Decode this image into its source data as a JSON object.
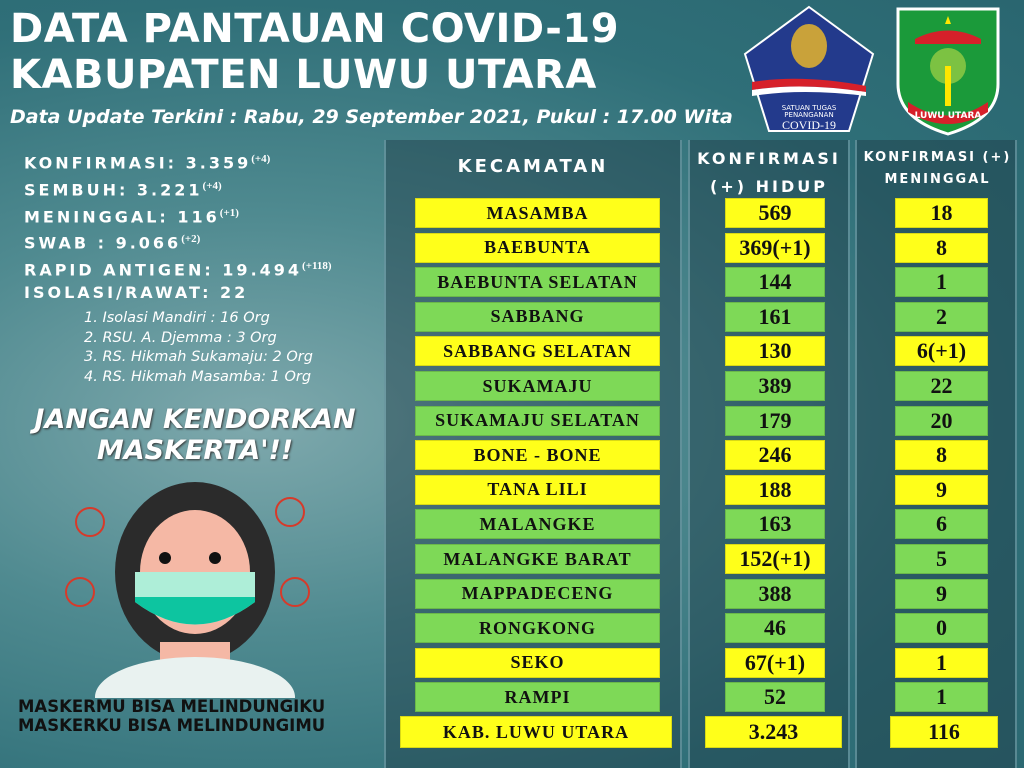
{
  "header": {
    "title1": "DATA PANTAUAN COVID-19",
    "title2": "KABUPATEN LUWU UTARA",
    "update": "Data Update Terkini : Rabu, 29 September 2021, Pukul : 17.00 Wita"
  },
  "logos": {
    "satgas": "SATUAN TUGAS PENANGANAN COVID-19",
    "luwu": "LUWU UTARA"
  },
  "stats": [
    {
      "label": "KONFIRMASI: 3.359",
      "delta": "(+4)"
    },
    {
      "label": "SEMBUH: 3.221",
      "delta": "(+4)"
    },
    {
      "label": "MENINGGAL: 116",
      "delta": "(+1)"
    },
    {
      "label": "SWAB : 9.066",
      "delta": "(+2)"
    },
    {
      "label": "RAPID ANTIGEN: 19.494",
      "delta": "(+118)"
    },
    {
      "label": "ISOLASI/RAWAT: 22",
      "delta": ""
    }
  ],
  "isolation": [
    "1. Isolasi Mandiri : 16 Org",
    "2. RSU. A. Djemma : 3 Org",
    "3. RS. Hikmah Sukamaju: 2 Org",
    "4. RS. Hikmah Masamba: 1 Org"
  ],
  "slogan": {
    "line1": "JANGAN KENDORKAN",
    "line2": "MASKERTA'!!"
  },
  "motto": {
    "line1": "MASKERMU BISA MELINDUNGIKU",
    "line2": "MASKERKU BISA MELINDUNGIMU"
  },
  "colors": {
    "yellow": "#ffff1a",
    "green": "#7ed957"
  },
  "table": {
    "headers": {
      "kecamatan": "KECAMATAN",
      "hidup1": "KONFIRMASI",
      "hidup2": "(+) HIDUP",
      "mati1": "KONFIRMASI (+)",
      "mati2": "MENINGGAL"
    },
    "rows": [
      {
        "name": "MASAMBA",
        "hidup": "569",
        "mati": "18",
        "c": [
          "yellow",
          "yellow",
          "yellow"
        ]
      },
      {
        "name": "BAEBUNTA",
        "hidup": "369(+1)",
        "mati": "8",
        "c": [
          "yellow",
          "yellow",
          "yellow"
        ]
      },
      {
        "name": "BAEBUNTA SELATAN",
        "hidup": "144",
        "mati": "1",
        "c": [
          "green",
          "green",
          "green"
        ]
      },
      {
        "name": "SABBANG",
        "hidup": "161",
        "mati": "2",
        "c": [
          "green",
          "green",
          "green"
        ]
      },
      {
        "name": "SABBANG SELATAN",
        "hidup": "130",
        "mati": "6(+1)",
        "c": [
          "yellow",
          "yellow",
          "yellow"
        ]
      },
      {
        "name": "SUKAMAJU",
        "hidup": "389",
        "mati": "22",
        "c": [
          "green",
          "green",
          "green"
        ]
      },
      {
        "name": "SUKAMAJU SELATAN",
        "hidup": "179",
        "mati": "20",
        "c": [
          "green",
          "green",
          "green"
        ]
      },
      {
        "name": "BONE - BONE",
        "hidup": "246",
        "mati": "8",
        "c": [
          "yellow",
          "yellow",
          "yellow"
        ]
      },
      {
        "name": "TANA LILI",
        "hidup": "188",
        "mati": "9",
        "c": [
          "yellow",
          "yellow",
          "yellow"
        ]
      },
      {
        "name": "MALANGKE",
        "hidup": "163",
        "mati": "6",
        "c": [
          "green",
          "green",
          "green"
        ]
      },
      {
        "name": "MALANGKE BARAT",
        "hidup": "152(+1)",
        "mati": "5",
        "c": [
          "green",
          "yellow",
          "green"
        ]
      },
      {
        "name": "MAPPADECENG",
        "hidup": "388",
        "mati": "9",
        "c": [
          "green",
          "green",
          "green"
        ]
      },
      {
        "name": "RONGKONG",
        "hidup": "46",
        "mati": "0",
        "c": [
          "green",
          "green",
          "green"
        ]
      },
      {
        "name": "SEKO",
        "hidup": "67(+1)",
        "mati": "1",
        "c": [
          "yellow",
          "yellow",
          "yellow"
        ]
      },
      {
        "name": "RAMPI",
        "hidup": "52",
        "mati": "1",
        "c": [
          "green",
          "green",
          "green"
        ]
      }
    ],
    "total": {
      "name": "KAB. LUWU UTARA",
      "hidup": "3.243",
      "mati": "116"
    }
  }
}
